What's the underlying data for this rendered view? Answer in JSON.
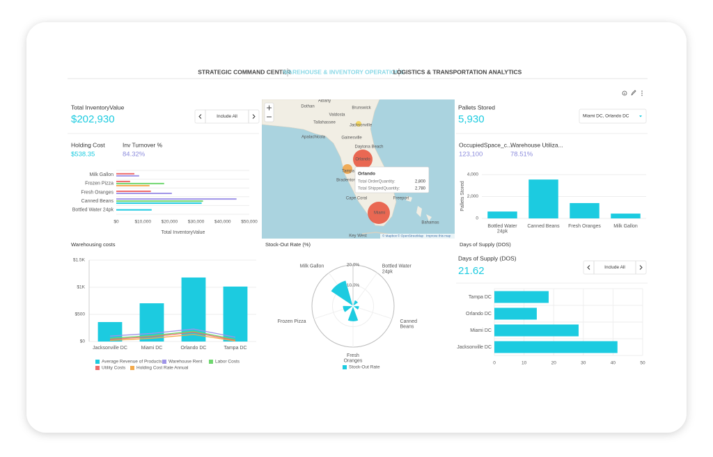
{
  "tabs": [
    "STRATEGIC COMMAND CENTER",
    "WAREHOUSE & INVENTORY OPERATIONS",
    "LOGISTICS & TRANSPORTATION ANALYTICS"
  ],
  "kpis": [
    {
      "label": "Total InventoryValue",
      "value": "$202,930"
    },
    {
      "label": "Holding Cost",
      "value": "$538.35"
    },
    {
      "label": "Inv Turnover %",
      "value": "84.32%"
    },
    {
      "label": "Pallets Stored",
      "value": "5,930"
    },
    {
      "label": "OccupiedSpace_c...",
      "value": "123,100"
    },
    {
      "label": "Warehouse Utiliza...",
      "value": "78.51%"
    },
    {
      "label": "Days of Supply (DOS)",
      "value": "21.62"
    }
  ],
  "filters": [
    "Include All",
    "Miami DC, Orlando DC",
    "Include All"
  ],
  "map": {
    "places": [
      "Albany",
      "Dothan",
      "Valdosta",
      "Brunswick",
      "Tallahassee",
      "Jacksonville",
      "Apalachicola",
      "Gainesville",
      "Daytona Beach",
      "Orlando",
      "Tampa",
      "Bradenton",
      "Cape Coral",
      "Freeport",
      "Miami",
      "Key West",
      "Bahamas"
    ],
    "tooltip": {
      "title": "Orlando",
      "rows": [
        {
          "label": "Total OrderQuantity:",
          "value": "2,800"
        },
        {
          "label": "Total ShippedQuantity:",
          "value": "2,780"
        }
      ]
    },
    "attribution": [
      "© Mapbox",
      "© OpenStreetMap",
      "Improve this map"
    ]
  },
  "chart_data": [
    {
      "type": "hbar",
      "xlabel": "Total InventoryValue",
      "categories": [
        "Milk Gallon",
        "Frozen Pizza",
        "Fresh Oranges",
        "Canned Beans",
        "Bottled Water 24pk"
      ],
      "series": [
        {
          "color": "#ee6a6a",
          "values": [
            6800,
            5200,
            13000,
            null,
            null
          ]
        },
        {
          "color": "#9f94e8",
          "values": [
            8600,
            null,
            20900,
            45200,
            null
          ]
        },
        {
          "color": "#6ed66e",
          "values": [
            null,
            18000,
            null,
            32600,
            null
          ]
        },
        {
          "color": "#1ccbe0",
          "values": [
            null,
            null,
            null,
            32100,
            13300
          ]
        },
        {
          "color": "#f3a94a",
          "values": [
            null,
            12500,
            null,
            null,
            null
          ]
        }
      ],
      "xlim": [
        0,
        50000
      ],
      "xticks": [
        {
          "value": 0,
          "label": "$0"
        },
        {
          "value": 10000,
          "label": "$10,000"
        },
        {
          "value": 20000,
          "label": "$20,000"
        },
        {
          "value": 30000,
          "label": "$30,000"
        },
        {
          "value": 40000,
          "label": "$40,000"
        },
        {
          "value": 50000,
          "label": "$50,000"
        }
      ],
      "grid": false
    },
    {
      "type": "bar_line",
      "title": "Warehousing costs",
      "categories": [
        "Jacksonville DC",
        "Miami DC",
        "Orlando DC",
        "Tampa DC"
      ],
      "series": [
        {
          "name": "Average Revenue of Products",
          "kind": "bar",
          "color": "#1ccbe0",
          "values": [
            359,
            705,
            1180,
            1013
          ]
        },
        {
          "name": "Warehouse Rent",
          "kind": "line",
          "color": "#9f94e8",
          "values": [
            100,
            150,
            230,
            80
          ]
        },
        {
          "name": "Labor Costs",
          "kind": "line",
          "color": "#6ed66e",
          "values": [
            60,
            110,
            190,
            40
          ]
        },
        {
          "name": "Utility Costs",
          "kind": "line",
          "color": "#ee6a6a",
          "values": [
            40,
            90,
            170,
            20
          ]
        },
        {
          "name": "Holding Cost Rate Annual",
          "kind": "line",
          "color": "#f3a94a",
          "values": [
            20,
            60,
            130,
            10
          ]
        }
      ],
      "ylim": [
        0,
        1500
      ],
      "yticks": [
        {
          "value": 0,
          "label": "$0"
        },
        {
          "value": 500,
          "label": "$500"
        },
        {
          "value": 1000,
          "label": "$1K"
        },
        {
          "value": 1500,
          "label": "$1.5K"
        }
      ],
      "grid": true
    },
    {
      "type": "polar",
      "title": "Stock-Out Rate (%)",
      "categories": [
        "Milk Gallon",
        "Bottled Water 24pk",
        "Canned Beans",
        "Fresh Oranges",
        "Frozen Pizza"
      ],
      "series": [
        {
          "name": "Stock-Out Rate",
          "color": "#1ccbe0",
          "values": [
            13,
            3,
            3,
            7.5,
            5
          ]
        }
      ],
      "rlim": [
        0,
        20
      ],
      "rticks": [
        {
          "value": 10,
          "label": "10.0%"
        },
        {
          "value": 20,
          "label": "20.0%"
        }
      ]
    },
    {
      "type": "bar",
      "ylabel": "Pallets Stored",
      "categories": [
        "Bottled Water 24pk",
        "Canned Beans",
        "Fresh Oranges",
        "Milk Gallon"
      ],
      "values": [
        630,
        3550,
        1400,
        440
      ],
      "color": "#1ccbe0",
      "ylim": [
        0,
        4000
      ],
      "yticks": [
        0,
        {
          "value": 2000,
          "label": "2,000"
        },
        {
          "value": 4000,
          "label": "4,000"
        }
      ],
      "grid": true
    },
    {
      "type": "hbar",
      "title": "Days of Supply (DOS)",
      "categories": [
        "Tampa DC",
        "Orlando DC",
        "Miami DC",
        "Jacksonville DC"
      ],
      "series": [
        {
          "color": "#1ccbe0",
          "values": [
            18.3,
            14.3,
            28.4,
            41.5
          ]
        }
      ],
      "xlim": [
        0,
        50
      ],
      "xticks": [
        0,
        10,
        20,
        30,
        40,
        50
      ],
      "grid": true
    }
  ]
}
